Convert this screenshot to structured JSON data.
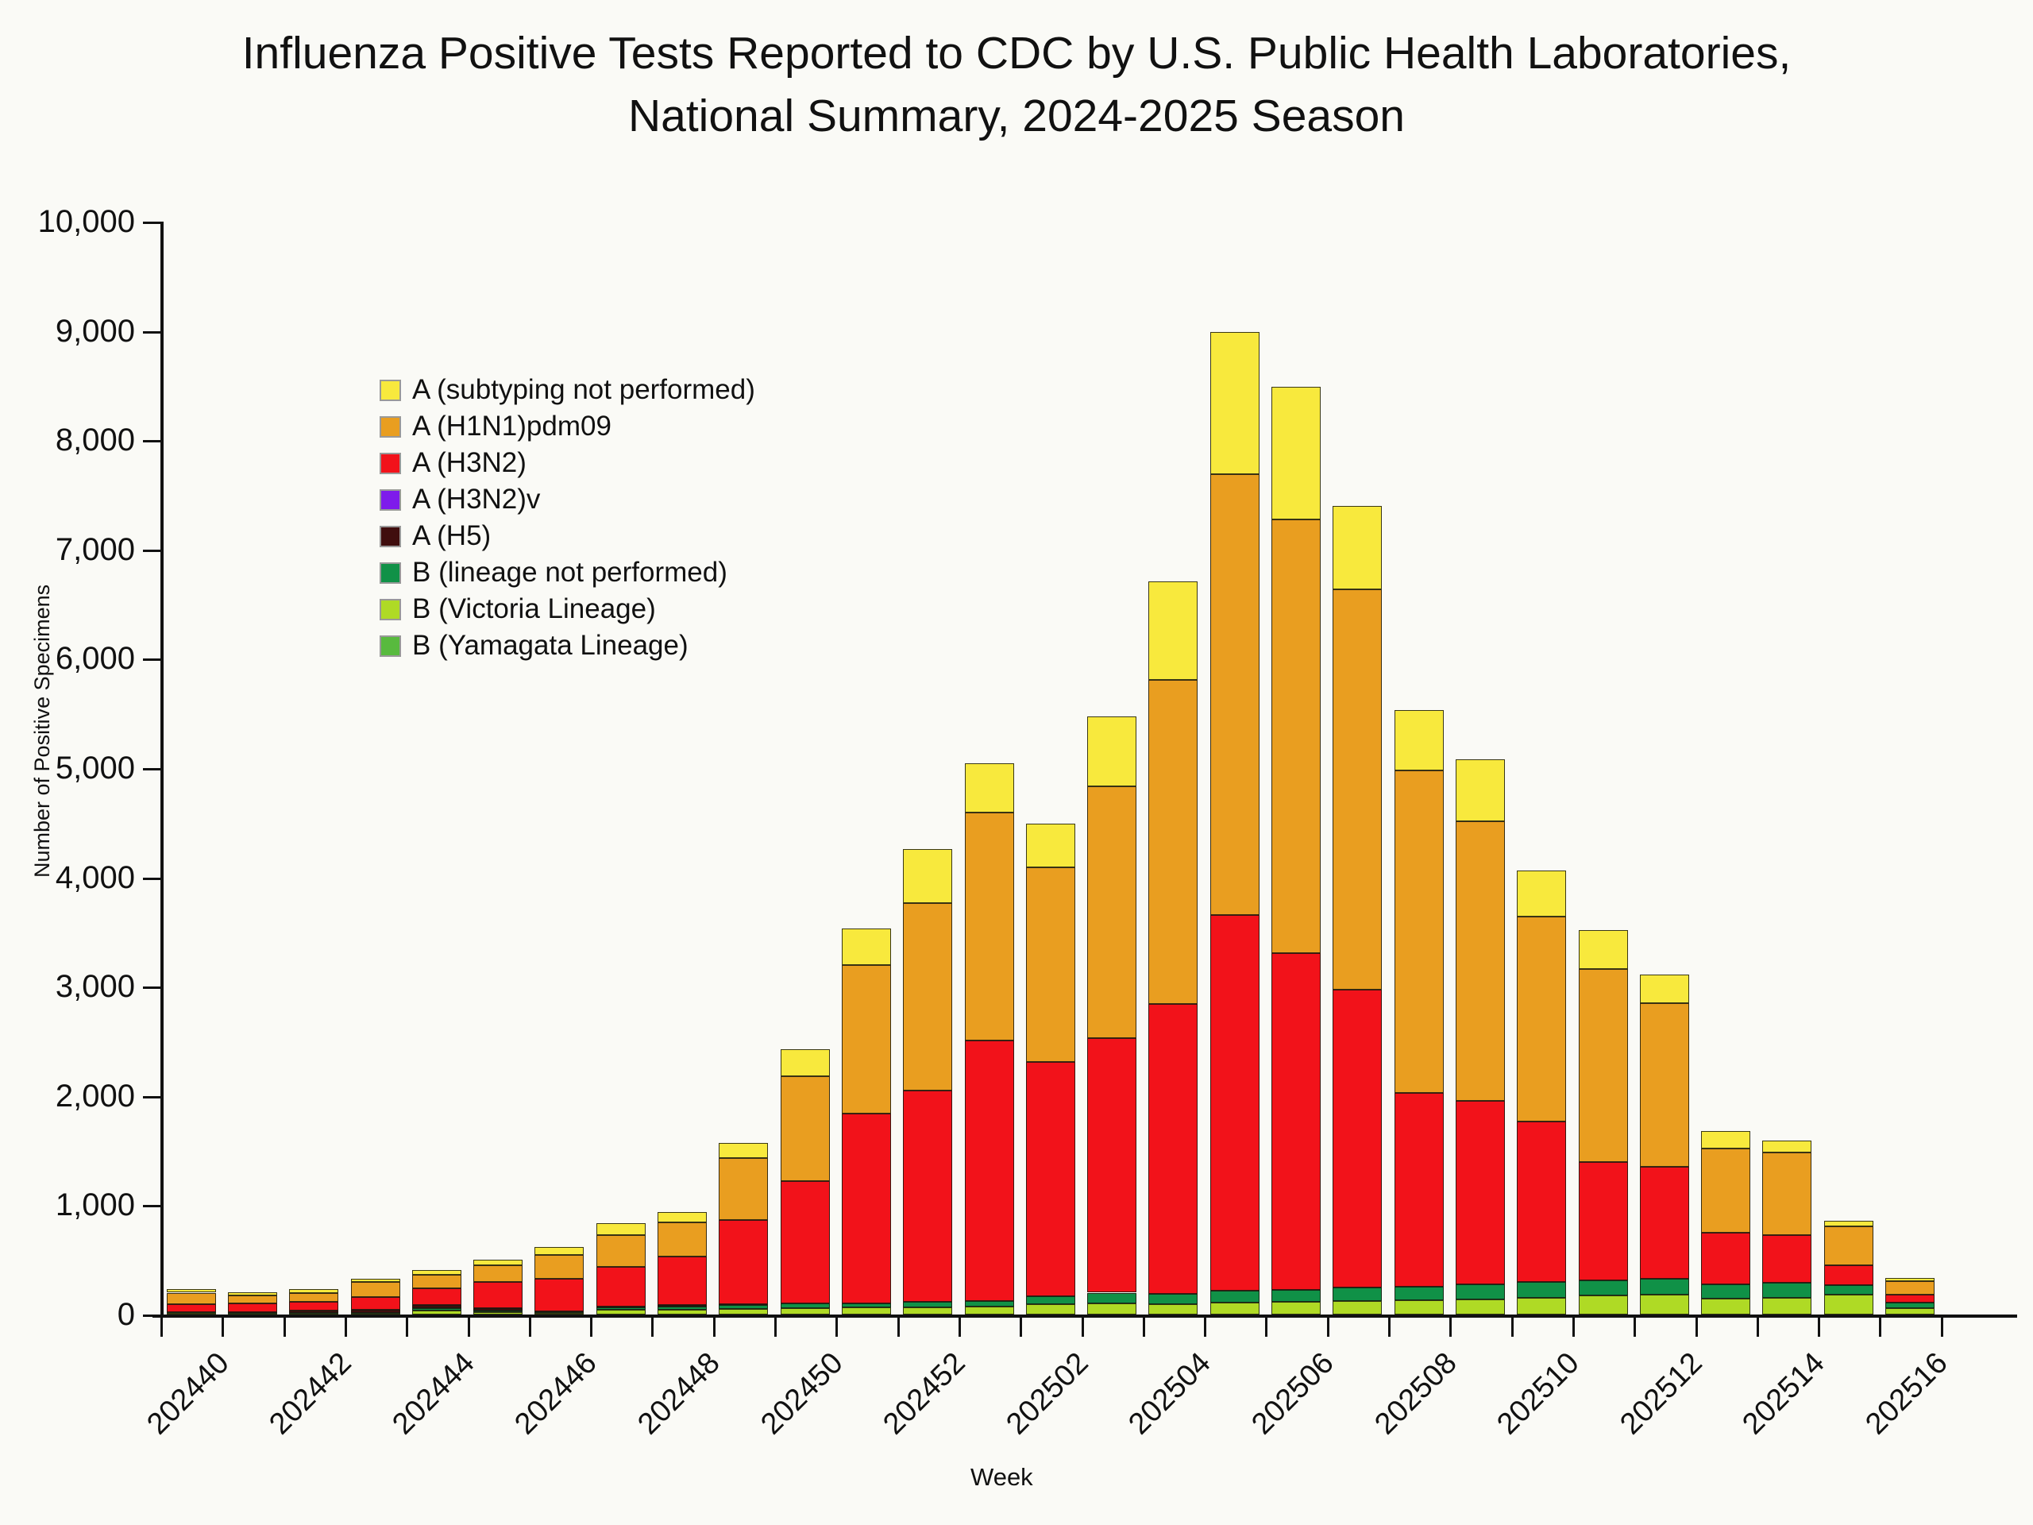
{
  "header": {
    "line1": "Influenza Positive Tests Reported to CDC by U.S. Public Health Laboratories,",
    "line2": "National Summary, 2024-2025 Season"
  },
  "chart_data": {
    "type": "bar",
    "stacked": true,
    "title": "Influenza Positive Tests Reported to CDC by U.S. Public Health Laboratories, National Summary, 2024-2025 Season",
    "xlabel": "Week",
    "ylabel": "Number of Positive Specimens",
    "ylim": [
      0,
      10000
    ],
    "ytick_interval": 1000,
    "ytick_labels": [
      "0",
      "1,000",
      "2,000",
      "3,000",
      "4,000",
      "5,000",
      "6,000",
      "7,000",
      "8,000",
      "9,000",
      "10,000"
    ],
    "grid": false,
    "legend_position": "inside-upper-left",
    "categories": [
      "202440",
      "202441",
      "202442",
      "202443",
      "202444",
      "202445",
      "202446",
      "202447",
      "202448",
      "202449",
      "202450",
      "202451",
      "202452",
      "202501",
      "202502",
      "202503",
      "202504",
      "202505",
      "202506",
      "202507",
      "202508",
      "202509",
      "202510",
      "202511",
      "202512",
      "202513",
      "202514",
      "202515",
      "202516"
    ],
    "xtick_label_every": 2,
    "stack_order_bottom_to_top": [
      "B (Yamagata Lineage)",
      "B (Victoria Lineage)",
      "B (lineage not performed)",
      "A (H5)",
      "A (H3N2)v",
      "A (H3N2)",
      "A (H1N1)pdm09",
      "A (subtyping not performed)"
    ],
    "series": [
      {
        "name": "A (subtyping not performed)",
        "slug": "a-subtyping-not-performed",
        "color": "#F8E93D",
        "values": [
          30,
          30,
          34,
          30,
          40,
          55,
          72,
          110,
          92,
          138,
          248,
          336,
          488,
          452,
          400,
          640,
          900,
          1302,
          1214,
          764,
          554,
          570,
          420,
          358,
          264,
          158,
          110,
          50,
          30
        ]
      },
      {
        "name": "A (H1N1)pdm09",
        "slug": "a-h1n1-pdm09",
        "color": "#E99E20",
        "values": [
          105,
          75,
          78,
          138,
          128,
          150,
          218,
          288,
          318,
          565,
          958,
          1360,
          1715,
          2090,
          1780,
          2300,
          2962,
          4028,
          3966,
          3664,
          2950,
          2554,
          1880,
          1766,
          1492,
          770,
          756,
          360,
          120
        ]
      },
      {
        "name": "A (H3N2)",
        "slug": "a-h3n2",
        "color": "#F2121A",
        "values": [
          70,
          80,
          85,
          112,
          152,
          245,
          295,
          365,
          438,
          770,
          1118,
          1732,
          1935,
          2378,
          2150,
          2330,
          2656,
          3442,
          3084,
          2724,
          1774,
          1684,
          1468,
          1082,
          1030,
          474,
          436,
          184,
          74
        ]
      },
      {
        "name": "A (H3N2)v",
        "slug": "a-h3n2v",
        "color": "#7E1BEB",
        "values": [
          0,
          0,
          0,
          0,
          0,
          0,
          0,
          0,
          0,
          0,
          0,
          0,
          0,
          0,
          0,
          0,
          0,
          0,
          0,
          0,
          0,
          0,
          0,
          0,
          0,
          0,
          0,
          0,
          0
        ]
      },
      {
        "name": "A (H5)",
        "slug": "a-h5",
        "color": "#400E0E",
        "values": [
          5,
          8,
          15,
          28,
          25,
          18,
          10,
          8,
          18,
          8,
          5,
          2,
          0,
          0,
          0,
          0,
          0,
          0,
          0,
          0,
          0,
          0,
          0,
          0,
          0,
          0,
          0,
          0,
          0
        ]
      },
      {
        "name": "B (lineage not performed)",
        "slug": "b-lineage-not-performed",
        "color": "#109147",
        "values": [
          8,
          6,
          8,
          8,
          25,
          12,
          10,
          24,
          28,
          35,
          40,
          40,
          50,
          55,
          72,
          100,
          94,
          104,
          110,
          120,
          124,
          134,
          140,
          136,
          144,
          132,
          140,
          86,
          50
        ]
      },
      {
        "name": "B (Victoria Lineage)",
        "slug": "b-victoria-lineage",
        "color": "#AFDA25",
        "values": [
          12,
          8,
          10,
          10,
          35,
          25,
          12,
          42,
          44,
          54,
          60,
          62,
          68,
          72,
          92,
          100,
          94,
          112,
          116,
          126,
          130,
          140,
          156,
          178,
          180,
          146,
          152,
          180,
          60
        ]
      },
      {
        "name": "B (Yamagata Lineage)",
        "slug": "b-yamagata-lineage",
        "color": "#58BA3E",
        "values": [
          0,
          0,
          0,
          0,
          0,
          0,
          0,
          0,
          0,
          0,
          0,
          0,
          0,
          0,
          0,
          0,
          0,
          0,
          0,
          0,
          0,
          0,
          0,
          0,
          0,
          0,
          0,
          0,
          0
        ]
      }
    ]
  }
}
